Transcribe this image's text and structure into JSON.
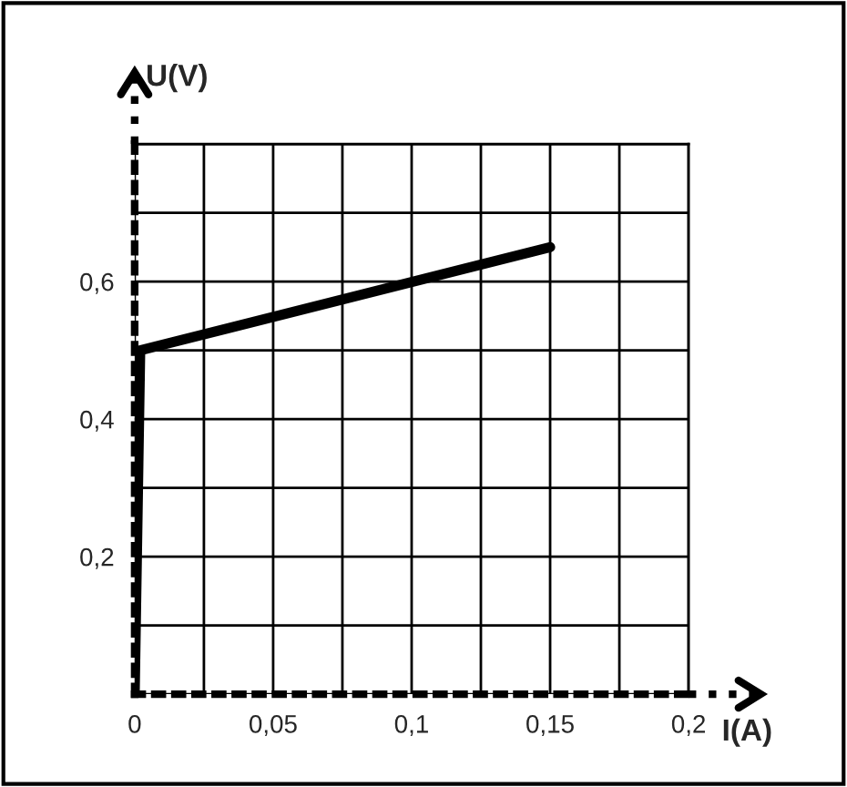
{
  "chart_data": {
    "type": "line",
    "xlabel": "I(A)",
    "ylabel": "U(V)",
    "x": [
      0,
      0.002,
      0.15
    ],
    "series": [
      {
        "color": "#000000",
        "values": [
          0,
          0.5,
          0.65
        ]
      }
    ],
    "xlim": [
      0,
      0.2
    ],
    "ylim": [
      0,
      0.8
    ],
    "xticks": [
      {
        "value": 0,
        "label": "0"
      },
      {
        "value": 0.025,
        "label": null
      },
      {
        "value": 0.05,
        "label": "0,05"
      },
      {
        "value": 0.075,
        "label": null
      },
      {
        "value": 0.1,
        "label": "0,1"
      },
      {
        "value": 0.125,
        "label": null
      },
      {
        "value": 0.15,
        "label": "0,15"
      },
      {
        "value": 0.175,
        "label": null
      },
      {
        "value": 0.2,
        "label": "0,2"
      }
    ],
    "yticks": [
      {
        "value": 0,
        "label": null
      },
      {
        "value": 0.1,
        "label": null
      },
      {
        "value": 0.2,
        "label": "0,2"
      },
      {
        "value": 0.3,
        "label": null
      },
      {
        "value": 0.4,
        "label": "0,4"
      },
      {
        "value": 0.5,
        "label": null
      },
      {
        "value": 0.6,
        "label": "0,6"
      },
      {
        "value": 0.7,
        "label": null
      },
      {
        "value": 0.8,
        "label": null
      }
    ],
    "grid": true,
    "line_style": "solid"
  }
}
